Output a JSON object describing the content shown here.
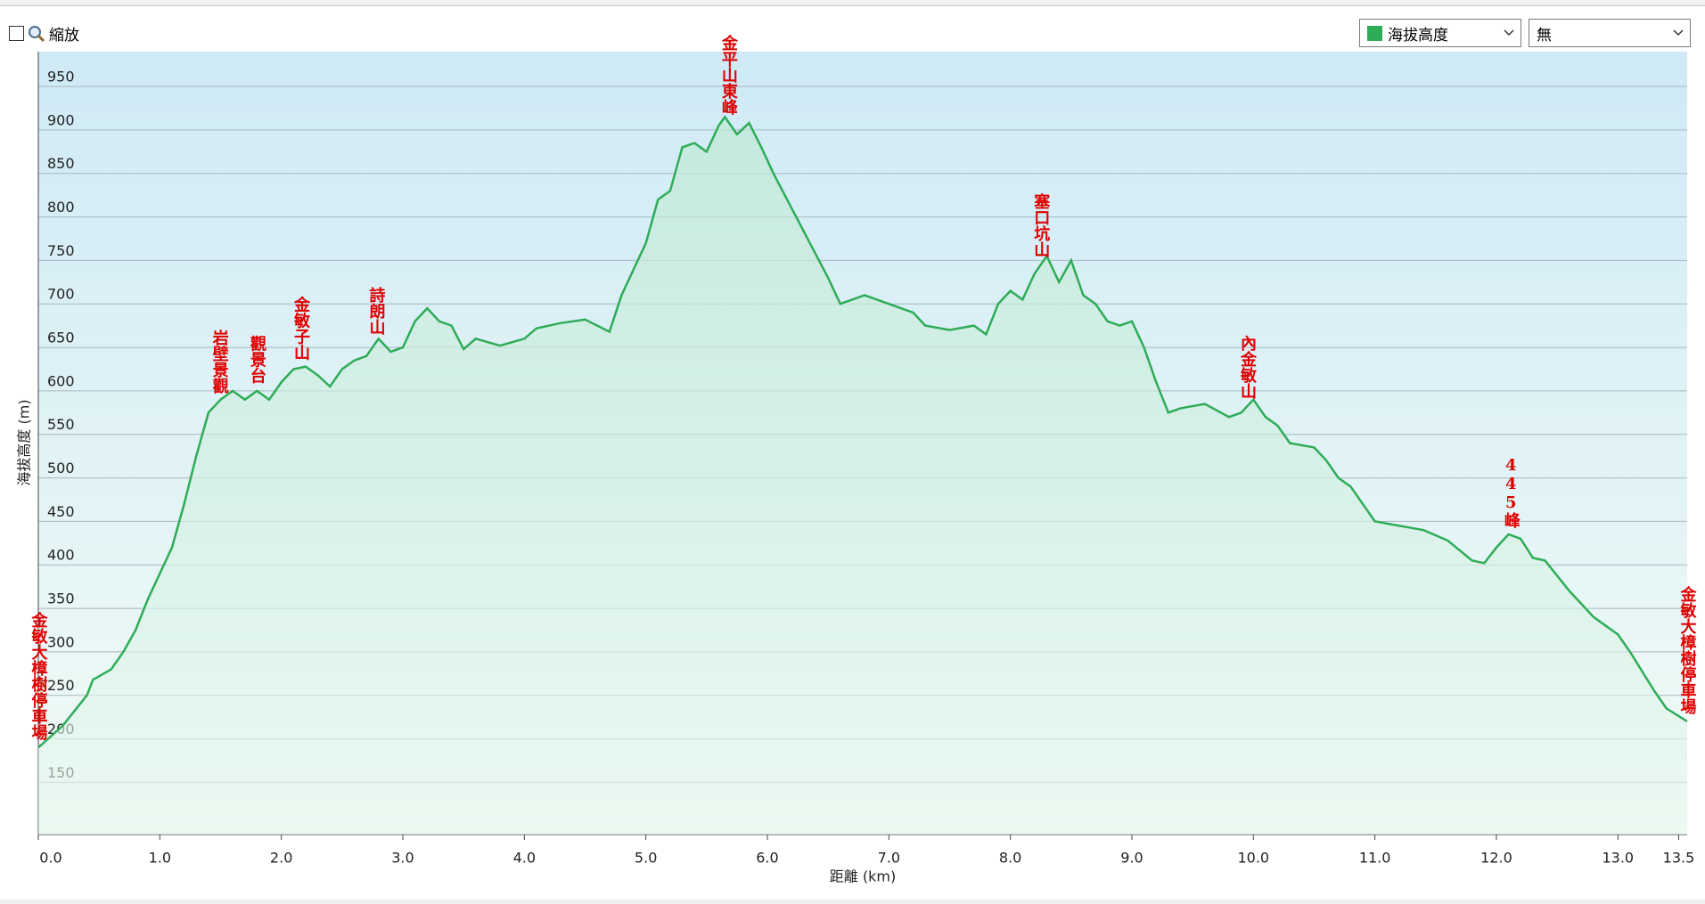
{
  "ui": {
    "zoom_label": "縮放",
    "overlay_select": "無"
  },
  "chart_data": {
    "type": "area",
    "x_label": "距離 (km)",
    "y_label": "海拔高度 (m)",
    "x": [
      0.0,
      0.2,
      0.4,
      0.45,
      0.6,
      0.7,
      0.8,
      0.9,
      1.0,
      1.1,
      1.2,
      1.3,
      1.4,
      1.5,
      1.6,
      1.7,
      1.8,
      1.9,
      2.0,
      2.1,
      2.2,
      2.3,
      2.4,
      2.5,
      2.6,
      2.7,
      2.8,
      2.9,
      3.0,
      3.1,
      3.2,
      3.3,
      3.4,
      3.5,
      3.6,
      3.8,
      4.0,
      4.1,
      4.3,
      4.5,
      4.7,
      4.8,
      4.9,
      5.0,
      5.1,
      5.2,
      5.3,
      5.4,
      5.5,
      5.6,
      5.65,
      5.75,
      5.85,
      5.95,
      6.05,
      6.2,
      6.35,
      6.5,
      6.6,
      6.8,
      7.0,
      7.2,
      7.3,
      7.5,
      7.7,
      7.8,
      7.9,
      8.0,
      8.1,
      8.2,
      8.3,
      8.4,
      8.5,
      8.6,
      8.7,
      8.8,
      8.9,
      9.0,
      9.1,
      9.2,
      9.3,
      9.4,
      9.6,
      9.8,
      9.9,
      10.0,
      10.1,
      10.2,
      10.3,
      10.5,
      10.6,
      10.7,
      10.8,
      11.0,
      11.2,
      11.4,
      11.6,
      11.8,
      11.9,
      12.0,
      12.1,
      12.2,
      12.3,
      12.4,
      12.6,
      12.8,
      13.0,
      13.1,
      13.3,
      13.4,
      13.57
    ],
    "series": [
      {
        "name": "海拔高度",
        "color": "#2fac58",
        "values": [
          190,
          215,
          250,
          268,
          280,
          300,
          325,
          360,
          390,
          420,
          470,
          525,
          575,
          590,
          600,
          590,
          600,
          590,
          610,
          625,
          628,
          618,
          605,
          625,
          635,
          640,
          660,
          645,
          650,
          680,
          695,
          680,
          675,
          648,
          660,
          652,
          660,
          672,
          678,
          682,
          668,
          710,
          740,
          770,
          820,
          830,
          880,
          885,
          875,
          905,
          915,
          895,
          908,
          880,
          850,
          810,
          770,
          730,
          700,
          710,
          700,
          690,
          675,
          670,
          675,
          665,
          700,
          715,
          705,
          735,
          755,
          725,
          750,
          710,
          700,
          680,
          675,
          680,
          650,
          610,
          575,
          580,
          585,
          570,
          575,
          590,
          570,
          560,
          540,
          535,
          520,
          500,
          490,
          450,
          445,
          440,
          428,
          405,
          402,
          420,
          435,
          430,
          408,
          405,
          370,
          340,
          320,
          300,
          255,
          235,
          220
        ]
      }
    ],
    "xlim": [
      0,
      13.57
    ],
    "ylim": [
      90,
      990
    ],
    "xticks": [
      {
        "value": 0,
        "label": "0.0"
      },
      {
        "value": 1,
        "label": "1.0"
      },
      {
        "value": 2,
        "label": "2.0"
      },
      {
        "value": 3,
        "label": "3.0"
      },
      {
        "value": 4,
        "label": "4.0"
      },
      {
        "value": 5,
        "label": "5.0"
      },
      {
        "value": 6,
        "label": "6.0"
      },
      {
        "value": 7,
        "label": "7.0"
      },
      {
        "value": 8,
        "label": "8.0"
      },
      {
        "value": 9,
        "label": "9.0"
      },
      {
        "value": 10,
        "label": "10.0"
      },
      {
        "value": 11,
        "label": "11.0"
      },
      {
        "value": 12,
        "label": "12.0"
      },
      {
        "value": 13,
        "label": "13.0"
      },
      13.5
    ],
    "yticks": [
      150,
      200,
      250,
      300,
      350,
      400,
      450,
      500,
      550,
      600,
      650,
      700,
      750,
      800,
      850,
      900,
      950
    ],
    "grid": true,
    "annotations": [
      {
        "text": "金敏大樟樹停車場",
        "x": 0.0
      },
      {
        "text": "岩壁景觀",
        "x": 1.49
      },
      {
        "text": "觀景台",
        "x": 1.8
      },
      {
        "text": "金敏子山",
        "x": 2.16
      },
      {
        "text": "詩朗山",
        "x": 2.78
      },
      {
        "text": "金平山東峰",
        "x": 5.68
      },
      {
        "text": "塞口坑山",
        "x": 8.25
      },
      {
        "text": "內金敏山",
        "x": 9.95
      },
      {
        "text": "445峰",
        "x": 12.12
      },
      {
        "text": "金敏大樟樹停車場",
        "x": 13.57
      }
    ]
  }
}
